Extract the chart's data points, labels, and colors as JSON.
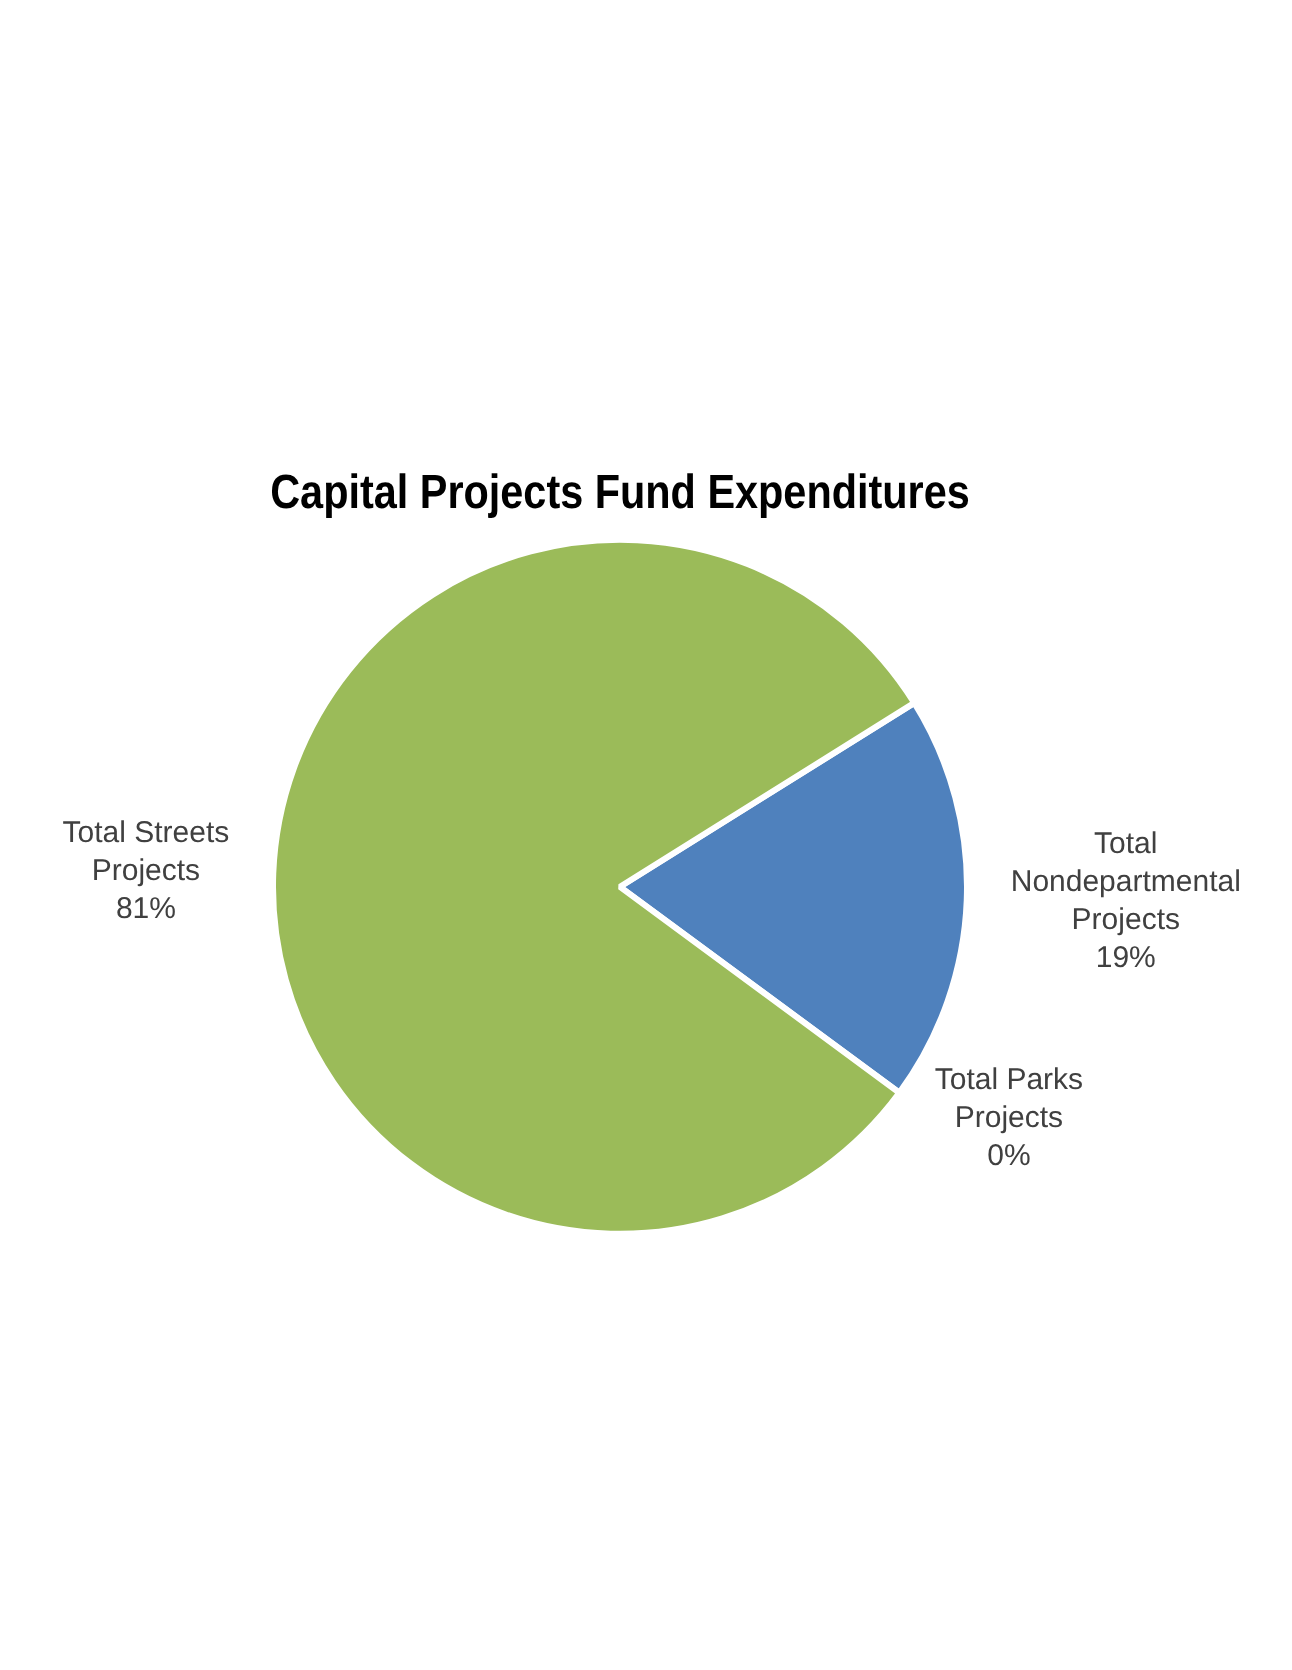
{
  "chart_data": {
    "type": "pie",
    "title": "Capital Projects Fund Expenditures",
    "categories": [
      "Total Nondepartmental Projects",
      "Total Parks Projects",
      "Total Streets Projects"
    ],
    "values": [
      19,
      0,
      81
    ],
    "colors": [
      "#4f81bd",
      "#9bbb59",
      "#9bbb59"
    ],
    "value_labels": [
      "19%",
      "0%",
      "81%"
    ],
    "legend": false
  }
}
